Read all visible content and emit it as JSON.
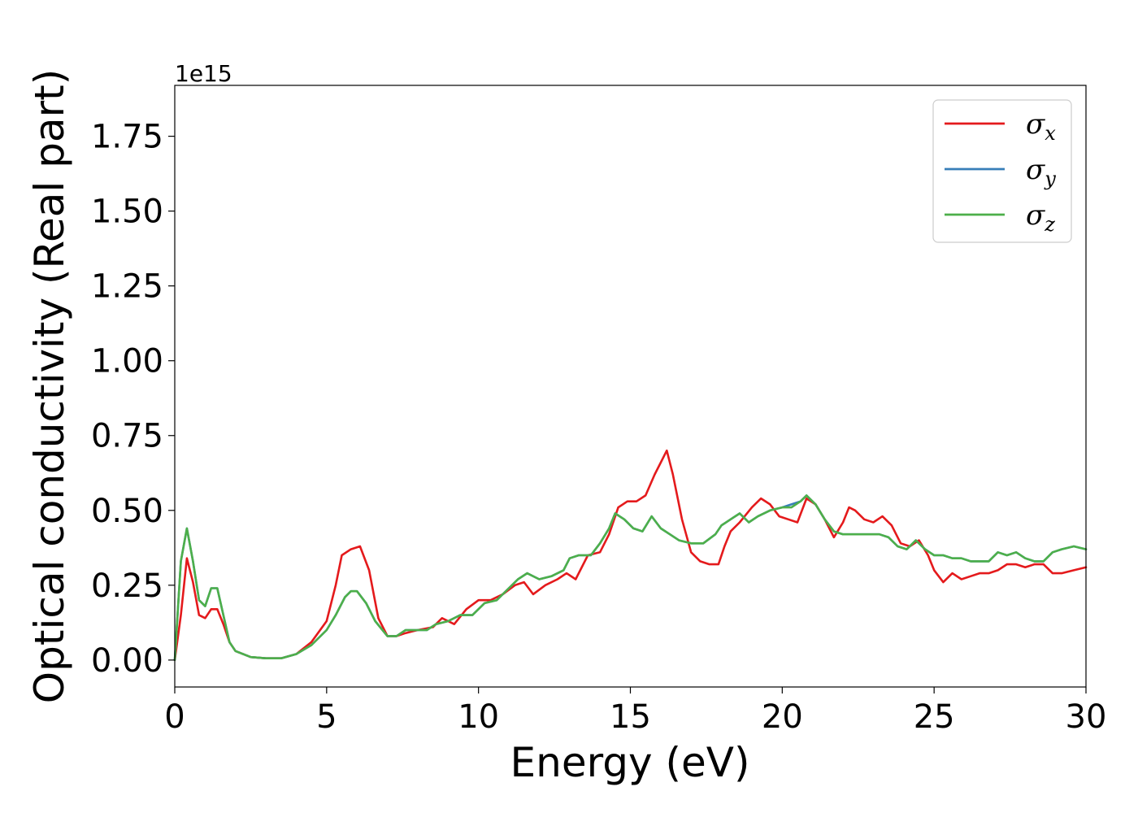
{
  "chart_data": {
    "type": "line",
    "xlabel": "Energy (eV)",
    "ylabel": "Optical conductivity (Real part)",
    "y_offset_label": "1e15",
    "xlim": [
      0,
      30
    ],
    "ylim": [
      -0.09,
      1.92
    ],
    "x_ticks": [
      "0",
      "5",
      "10",
      "15",
      "20",
      "25",
      "30"
    ],
    "y_ticks": [
      "0.00",
      "0.25",
      "0.50",
      "0.75",
      "1.00",
      "1.25",
      "1.50",
      "1.75"
    ],
    "grid": false,
    "legend_position": "top-right",
    "series": [
      {
        "name": "σx",
        "symbol": "σ",
        "sub": "x",
        "color": "#e41a1c",
        "x": [
          0,
          0.2,
          0.4,
          0.6,
          0.8,
          1.0,
          1.2,
          1.4,
          1.6,
          1.8,
          2.0,
          2.5,
          3.0,
          3.5,
          4.0,
          4.5,
          5.0,
          5.3,
          5.5,
          5.8,
          6.1,
          6.4,
          6.7,
          7.0,
          7.3,
          7.6,
          8.0,
          8.5,
          8.8,
          9.2,
          9.6,
          10.0,
          10.4,
          10.8,
          11.2,
          11.5,
          11.8,
          12.2,
          12.6,
          12.9,
          13.2,
          13.6,
          14.0,
          14.3,
          14.6,
          14.9,
          15.2,
          15.5,
          15.8,
          16.0,
          16.2,
          16.4,
          16.7,
          17.0,
          17.3,
          17.6,
          17.9,
          18.1,
          18.3,
          18.6,
          19.0,
          19.3,
          19.6,
          19.9,
          20.2,
          20.5,
          20.8,
          21.1,
          21.4,
          21.7,
          22.0,
          22.2,
          22.4,
          22.7,
          23.0,
          23.3,
          23.6,
          23.9,
          24.2,
          24.5,
          24.8,
          25.0,
          25.3,
          25.6,
          25.9,
          26.2,
          26.5,
          26.8,
          27.1,
          27.4,
          27.7,
          28.0,
          28.3,
          28.6,
          28.9,
          29.2,
          29.6,
          30.0
        ],
        "y": [
          0.0,
          0.15,
          0.34,
          0.26,
          0.15,
          0.14,
          0.17,
          0.17,
          0.12,
          0.06,
          0.03,
          0.01,
          0.006,
          0.006,
          0.02,
          0.06,
          0.13,
          0.25,
          0.35,
          0.37,
          0.38,
          0.3,
          0.14,
          0.08,
          0.08,
          0.09,
          0.1,
          0.11,
          0.14,
          0.12,
          0.17,
          0.2,
          0.2,
          0.22,
          0.25,
          0.26,
          0.22,
          0.25,
          0.27,
          0.29,
          0.27,
          0.35,
          0.36,
          0.42,
          0.51,
          0.53,
          0.53,
          0.55,
          0.62,
          0.66,
          0.7,
          0.62,
          0.47,
          0.36,
          0.33,
          0.32,
          0.32,
          0.38,
          0.43,
          0.46,
          0.51,
          0.54,
          0.52,
          0.48,
          0.47,
          0.46,
          0.54,
          0.52,
          0.47,
          0.41,
          0.46,
          0.51,
          0.5,
          0.47,
          0.46,
          0.48,
          0.45,
          0.39,
          0.38,
          0.4,
          0.35,
          0.3,
          0.26,
          0.29,
          0.27,
          0.28,
          0.29,
          0.29,
          0.3,
          0.32,
          0.32,
          0.31,
          0.32,
          0.32,
          0.29,
          0.29,
          0.3,
          0.31
        ]
      },
      {
        "name": "σy",
        "symbol": "σ",
        "sub": "y",
        "color": "#377eb8",
        "x": [
          0,
          0.2,
          0.4,
          0.6,
          0.8,
          1.0,
          1.2,
          1.4,
          1.6,
          1.8,
          2.0,
          2.5,
          3.0,
          3.5,
          4.0,
          4.5,
          5.0,
          5.3,
          5.6,
          5.8,
          6.0,
          6.3,
          6.6,
          7.0,
          7.3,
          7.6,
          8.0,
          8.3,
          8.6,
          9.0,
          9.4,
          9.8,
          10.2,
          10.6,
          11.0,
          11.3,
          11.6,
          12.0,
          12.4,
          12.8,
          13.0,
          13.3,
          13.7,
          14.0,
          14.3,
          14.5,
          14.8,
          15.1,
          15.4,
          15.7,
          16.0,
          16.3,
          16.6,
          17.0,
          17.4,
          17.8,
          18.0,
          18.3,
          18.6,
          18.9,
          19.2,
          19.6,
          20.0,
          20.3,
          20.6,
          20.8,
          21.1,
          21.4,
          21.7,
          22.0,
          22.4,
          22.8,
          23.2,
          23.5,
          23.8,
          24.1,
          24.4,
          24.7,
          25.0,
          25.3,
          25.6,
          25.9,
          26.2,
          26.5,
          26.8,
          27.1,
          27.4,
          27.7,
          28.0,
          28.3,
          28.6,
          28.9,
          29.2,
          29.6,
          30.0
        ],
        "y": [
          0.0,
          0.33,
          0.44,
          0.33,
          0.2,
          0.18,
          0.24,
          0.24,
          0.15,
          0.06,
          0.03,
          0.01,
          0.006,
          0.006,
          0.02,
          0.05,
          0.1,
          0.15,
          0.21,
          0.23,
          0.23,
          0.19,
          0.13,
          0.08,
          0.08,
          0.1,
          0.1,
          0.1,
          0.12,
          0.13,
          0.15,
          0.15,
          0.19,
          0.2,
          0.24,
          0.27,
          0.29,
          0.27,
          0.28,
          0.3,
          0.34,
          0.35,
          0.35,
          0.39,
          0.44,
          0.49,
          0.47,
          0.44,
          0.43,
          0.48,
          0.44,
          0.42,
          0.4,
          0.39,
          0.39,
          0.42,
          0.45,
          0.47,
          0.49,
          0.46,
          0.48,
          0.5,
          0.51,
          0.52,
          0.53,
          0.55,
          0.52,
          0.47,
          0.43,
          0.42,
          0.42,
          0.42,
          0.42,
          0.41,
          0.38,
          0.37,
          0.4,
          0.37,
          0.35,
          0.35,
          0.34,
          0.34,
          0.33,
          0.33,
          0.33,
          0.36,
          0.35,
          0.36,
          0.34,
          0.33,
          0.33,
          0.36,
          0.37,
          0.38,
          0.37
        ]
      },
      {
        "name": "σz",
        "symbol": "σ",
        "sub": "z",
        "color": "#4daf4a",
        "x": [
          0,
          0.2,
          0.4,
          0.6,
          0.8,
          1.0,
          1.2,
          1.4,
          1.6,
          1.8,
          2.0,
          2.5,
          3.0,
          3.5,
          4.0,
          4.5,
          5.0,
          5.3,
          5.6,
          5.8,
          6.0,
          6.3,
          6.6,
          7.0,
          7.3,
          7.6,
          8.0,
          8.3,
          8.6,
          9.0,
          9.4,
          9.8,
          10.2,
          10.6,
          11.0,
          11.3,
          11.6,
          12.0,
          12.4,
          12.8,
          13.0,
          13.3,
          13.7,
          14.0,
          14.3,
          14.5,
          14.8,
          15.1,
          15.4,
          15.7,
          16.0,
          16.3,
          16.6,
          17.0,
          17.4,
          17.8,
          18.0,
          18.3,
          18.6,
          18.9,
          19.2,
          19.6,
          20.0,
          20.3,
          20.6,
          20.8,
          21.1,
          21.4,
          21.7,
          22.0,
          22.4,
          22.8,
          23.2,
          23.5,
          23.8,
          24.1,
          24.4,
          24.7,
          25.0,
          25.3,
          25.6,
          25.9,
          26.2,
          26.5,
          26.8,
          27.1,
          27.4,
          27.7,
          28.0,
          28.3,
          28.6,
          28.9,
          29.2,
          29.6,
          30.0
        ],
        "y": [
          0.0,
          0.33,
          0.44,
          0.33,
          0.2,
          0.18,
          0.24,
          0.24,
          0.15,
          0.06,
          0.03,
          0.01,
          0.006,
          0.006,
          0.02,
          0.05,
          0.1,
          0.15,
          0.21,
          0.23,
          0.23,
          0.19,
          0.13,
          0.08,
          0.08,
          0.1,
          0.1,
          0.1,
          0.12,
          0.13,
          0.15,
          0.15,
          0.19,
          0.2,
          0.24,
          0.27,
          0.29,
          0.27,
          0.28,
          0.3,
          0.34,
          0.35,
          0.35,
          0.39,
          0.44,
          0.49,
          0.47,
          0.44,
          0.43,
          0.48,
          0.44,
          0.42,
          0.4,
          0.39,
          0.39,
          0.42,
          0.45,
          0.47,
          0.49,
          0.46,
          0.48,
          0.5,
          0.51,
          0.51,
          0.53,
          0.55,
          0.52,
          0.47,
          0.43,
          0.42,
          0.42,
          0.42,
          0.42,
          0.41,
          0.38,
          0.37,
          0.4,
          0.37,
          0.35,
          0.35,
          0.34,
          0.34,
          0.33,
          0.33,
          0.33,
          0.36,
          0.35,
          0.36,
          0.34,
          0.33,
          0.33,
          0.36,
          0.37,
          0.38,
          0.37
        ]
      }
    ]
  }
}
